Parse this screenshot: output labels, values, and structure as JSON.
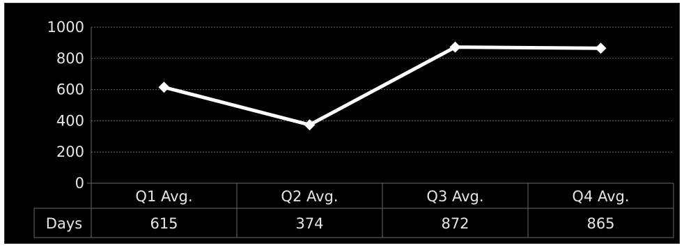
{
  "chart_data": {
    "type": "line",
    "categories": [
      "Q1 Avg.",
      "Q2 Avg.",
      "Q3 Avg.",
      "Q4 Avg."
    ],
    "series": [
      {
        "name": "Days",
        "values": [
          615,
          374,
          872,
          865
        ]
      }
    ],
    "y_ticks": [
      "0",
      "200",
      "400",
      "600",
      "800",
      "1000"
    ],
    "ylim": [
      0,
      1000
    ],
    "grid": true,
    "legend": "data-table row header",
    "colors": {
      "background": "#000000",
      "line": "#ffffff",
      "marker": "#ffffff",
      "grid": "#6a6a6a",
      "text": "#e6e6e6"
    }
  }
}
